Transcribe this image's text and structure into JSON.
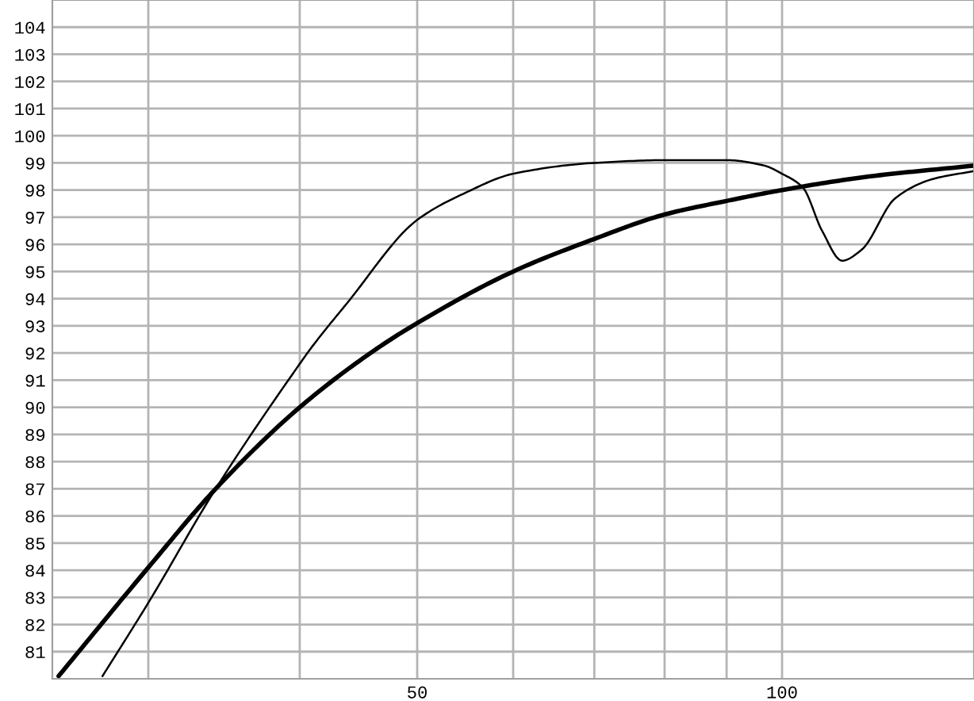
{
  "chart_data": {
    "type": "line",
    "log": "x",
    "xlim": [
      25,
      144
    ],
    "xticks": [
      {
        "value": 30,
        "label": null
      },
      {
        "value": 40,
        "label": null
      },
      50,
      {
        "value": 60,
        "label": null
      },
      {
        "value": 70,
        "label": null
      },
      {
        "value": 80,
        "label": null
      },
      {
        "value": 90,
        "label": null
      },
      100
    ],
    "ylim": [
      80,
      105
    ],
    "yticks": [
      81,
      82,
      83,
      84,
      85,
      86,
      87,
      88,
      89,
      90,
      91,
      92,
      93,
      94,
      95,
      96,
      97,
      98,
      99,
      100,
      101,
      102,
      103,
      104
    ],
    "grid": true,
    "marker": "none",
    "line_style": "solid",
    "series": [
      {
        "color": "#000000",
        "x": [
          25.3,
          30,
          34.1,
          40,
          46.1,
          50,
          60,
          70,
          80,
          90,
          100,
          118,
          144
        ],
        "values": [
          80.1,
          84.1,
          87.0,
          90.0,
          92.1,
          93.1,
          95.0,
          96.2,
          97.1,
          97.6,
          98.0,
          98.5,
          98.9
        ]
      },
      {
        "color": "#000000",
        "x": [
          27.5,
          30,
          34.1,
          40,
          40.9,
          43.7,
          50,
          54.8,
          60,
          70,
          80,
          90,
          96.7,
          100,
          104,
          107.9,
          112.1,
          116.3,
          124,
          133,
          144
        ],
        "values": [
          80.1,
          82.8,
          87.0,
          91.6,
          92.2,
          93.8,
          96.9,
          97.9,
          98.6,
          99.0,
          99.1,
          99.1,
          98.9,
          98.6,
          98.1,
          96.5,
          95.4,
          95.8,
          97.7,
          98.4,
          98.7
        ]
      }
    ]
  }
}
